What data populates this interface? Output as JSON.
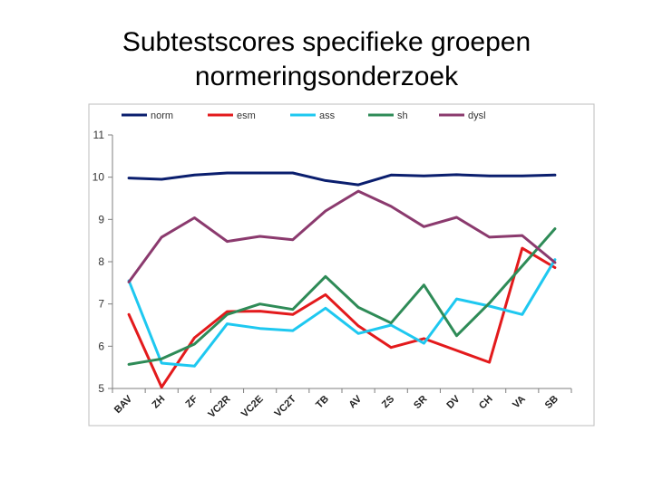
{
  "title": {
    "line1": "Subtestscores specifieke groepen",
    "line2": "normeringsonderzoek"
  },
  "chart_data": {
    "type": "line",
    "title": "Subtestscores specifieke groepen normeringsonderzoek",
    "xlabel": "",
    "ylabel": "",
    "ylim": [
      5,
      11
    ],
    "yticks": [
      5,
      6,
      7,
      8,
      9,
      10,
      11
    ],
    "grid": false,
    "legend_position": "top",
    "categories": [
      "BAV",
      "ZH",
      "ZF",
      "VC2R",
      "VC2E",
      "VC2T",
      "TB",
      "AV",
      "ZS",
      "SR",
      "DV",
      "CH",
      "VA",
      "SB"
    ],
    "series": [
      {
        "name": "norm",
        "color": "#0a1e6e",
        "values": [
          9.98,
          9.95,
          10.05,
          10.1,
          10.1,
          10.1,
          9.92,
          9.82,
          10.05,
          10.03,
          10.06,
          10.03,
          10.03,
          10.05
        ]
      },
      {
        "name": "esm",
        "color": "#e31a1c",
        "values": [
          6.75,
          5.03,
          6.2,
          6.82,
          6.83,
          6.75,
          7.22,
          6.48,
          5.97,
          6.18,
          5.9,
          5.62,
          8.32,
          7.86
        ]
      },
      {
        "name": "ass",
        "color": "#1ec8f0",
        "values": [
          7.55,
          5.6,
          5.53,
          6.53,
          6.42,
          6.37,
          6.9,
          6.3,
          6.5,
          6.07,
          7.12,
          6.95,
          6.75,
          8.05
        ]
      },
      {
        "name": "sh",
        "color": "#2e8b57",
        "values": [
          5.57,
          5.7,
          6.05,
          6.75,
          7.0,
          6.87,
          7.65,
          6.92,
          6.55,
          7.45,
          6.25,
          7.02,
          7.9,
          8.78
        ]
      },
      {
        "name": "dysl",
        "color": "#8b3a6e",
        "values": [
          7.52,
          8.58,
          9.04,
          8.48,
          8.6,
          8.52,
          9.2,
          9.67,
          9.31,
          8.83,
          9.05,
          8.58,
          8.62,
          7.98
        ]
      }
    ]
  }
}
